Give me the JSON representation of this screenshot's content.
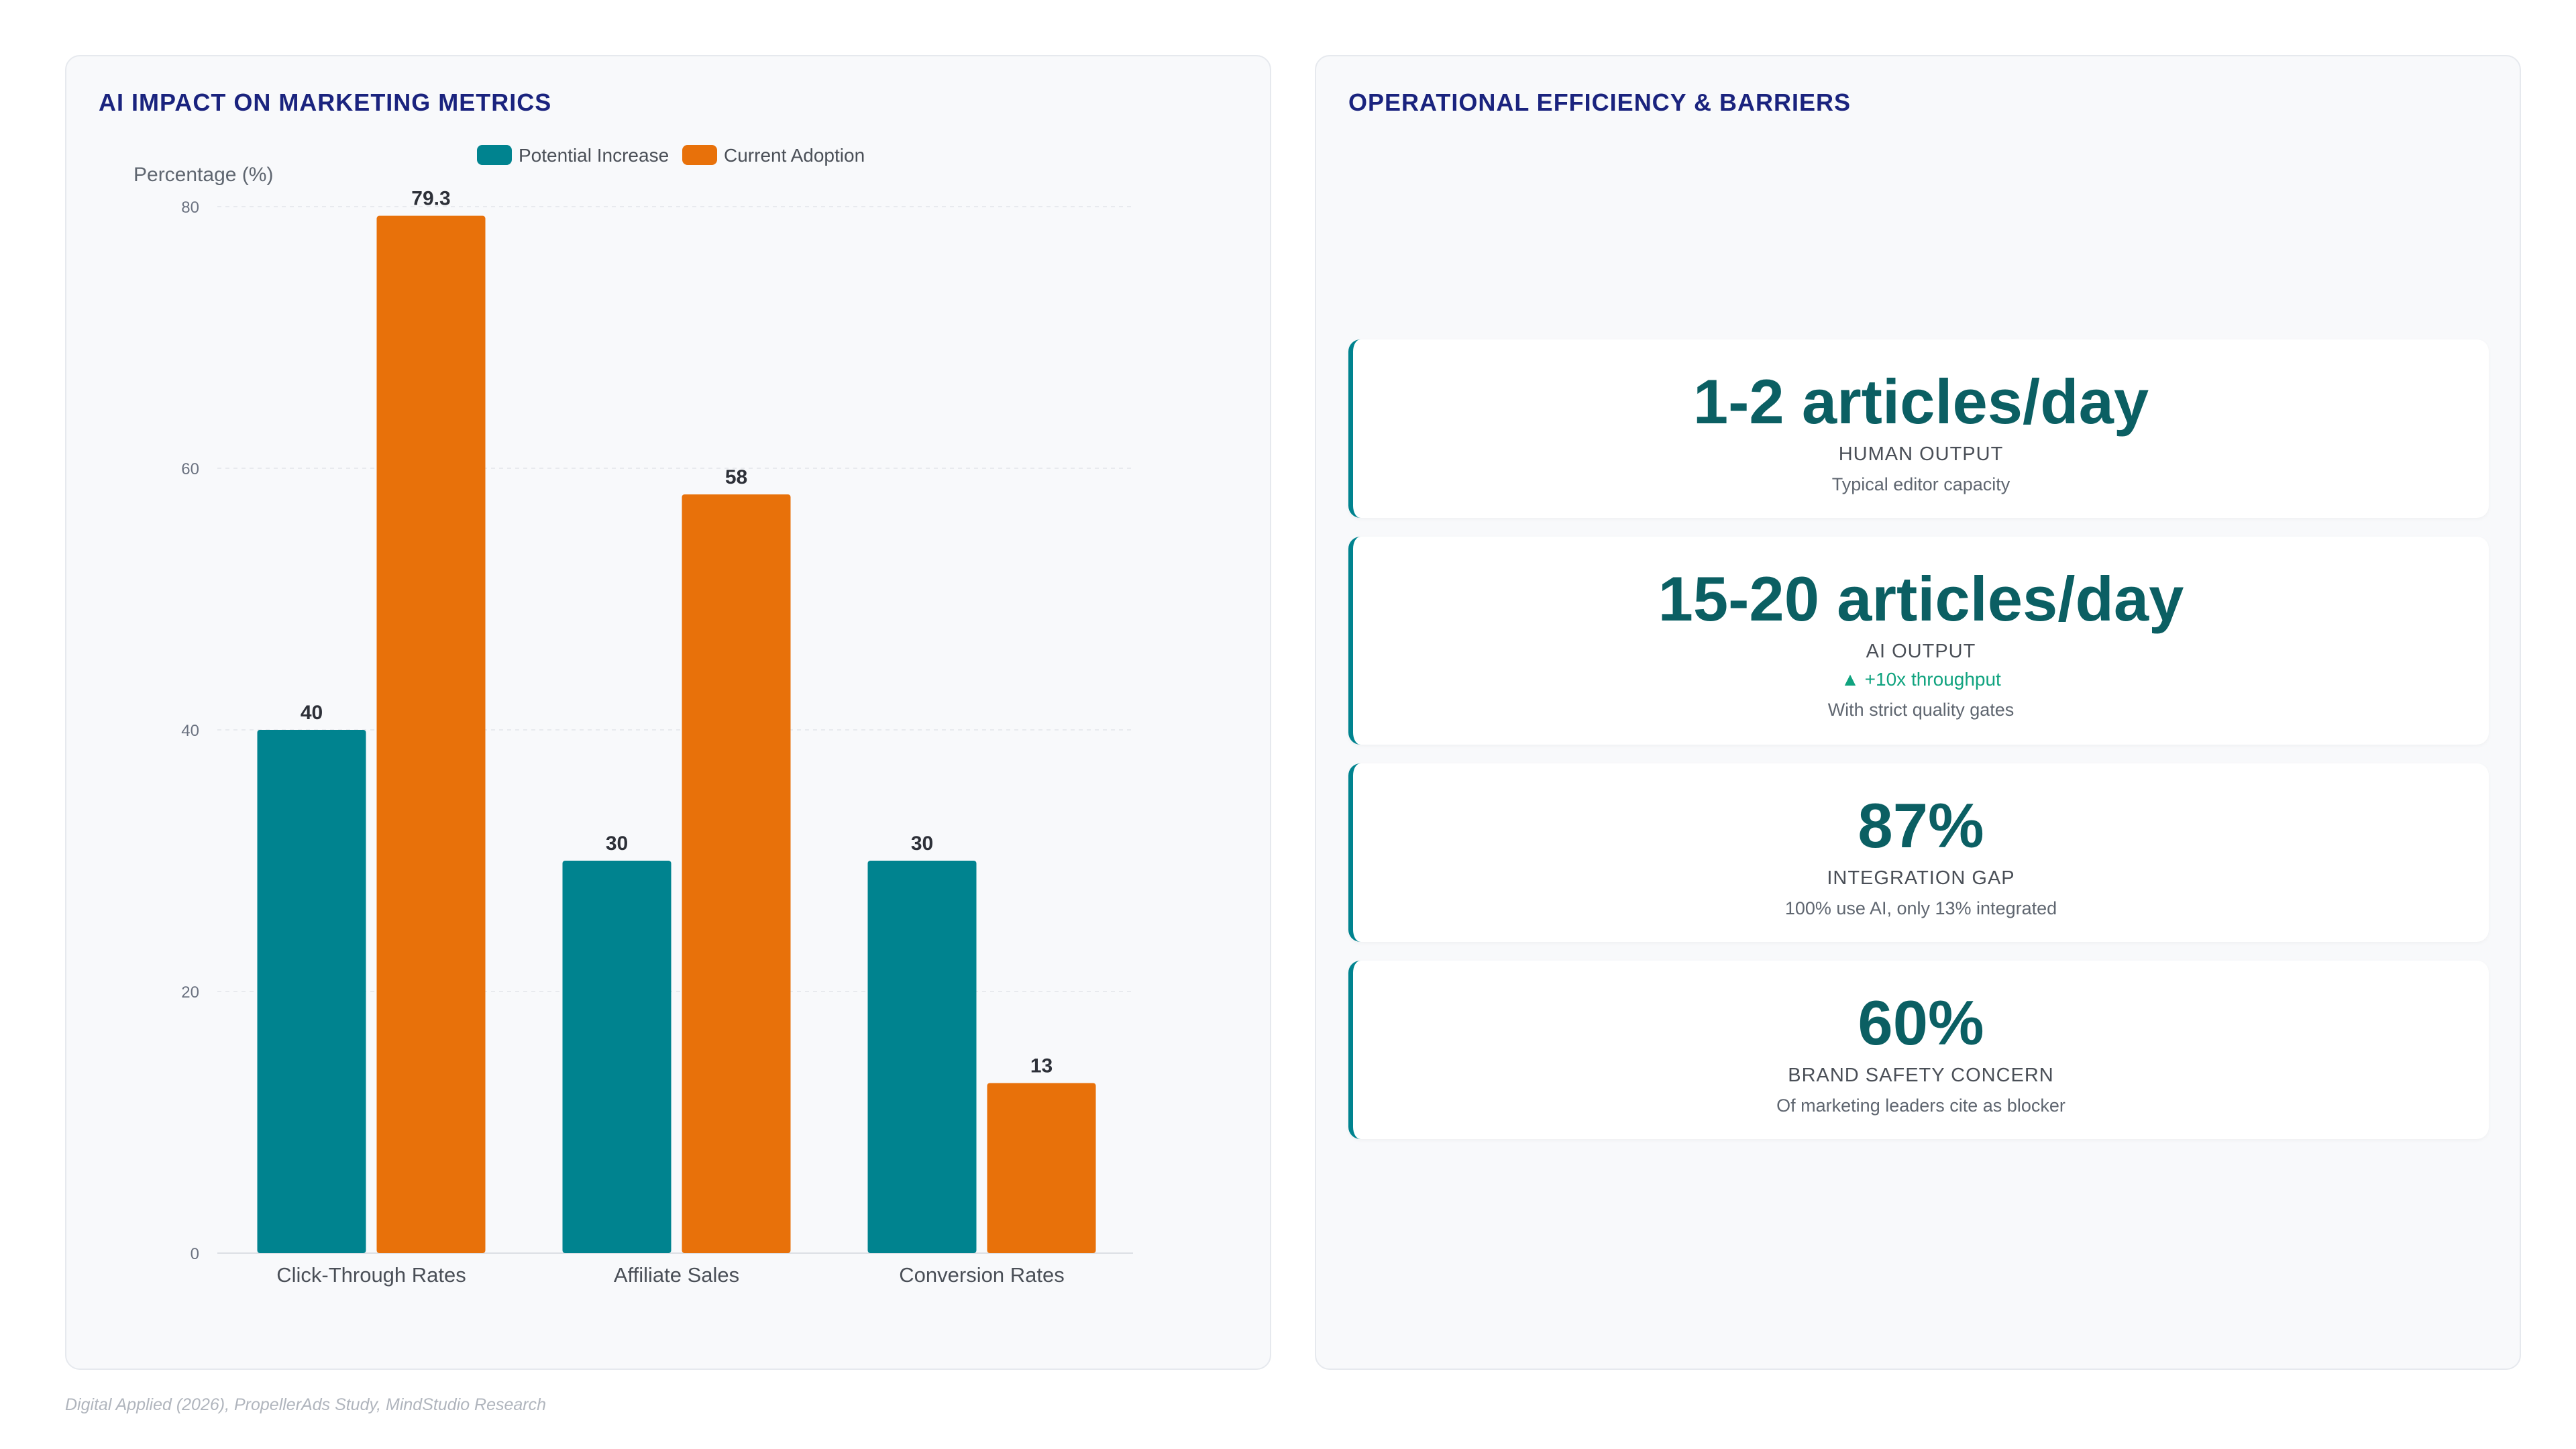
{
  "left_panel": {
    "title": "AI IMPACT ON MARKETING METRICS"
  },
  "chart_data": {
    "type": "bar",
    "categories": [
      "Click-Through Rates",
      "Affiliate Sales",
      "Conversion Rates"
    ],
    "series": [
      {
        "name": "Potential Increase",
        "values": [
          40,
          30,
          30
        ],
        "color": "#00838f"
      },
      {
        "name": "Current Adoption",
        "values": [
          79.3,
          58,
          13
        ],
        "color": "#e8710a"
      }
    ],
    "xlabel": "",
    "ylabel": "Percentage (%)",
    "ylim": [
      0,
      80
    ],
    "yticks": [
      0,
      20,
      40,
      60,
      80
    ],
    "grid": true,
    "legend_position": "top-center",
    "data_labels": true
  },
  "right_panel": {
    "title": "OPERATIONAL EFFICIENCY & BARRIERS",
    "stats": [
      {
        "value": "1-2 articles/day",
        "label": "HUMAN OUTPUT",
        "delta": "",
        "note": "Typical editor capacity"
      },
      {
        "value": "15-20 articles/day",
        "label": "AI OUTPUT",
        "delta": "▲ +10x throughput",
        "note": "With strict quality gates"
      },
      {
        "value": "87%",
        "label": "INTEGRATION GAP",
        "delta": "",
        "note": "100% use AI, only 13% integrated"
      },
      {
        "value": "60%",
        "label": "BRAND SAFETY CONCERN",
        "delta": "",
        "note": "Of marketing leaders cite as blocker"
      }
    ]
  },
  "footer": {
    "source": "Digital Applied (2026), PropellerAds Study, MindStudio Research"
  },
  "colors": {
    "title": "#1a237e",
    "teal": "#00838f",
    "orange": "#e8710a",
    "stat_value": "#0b5f63",
    "delta": "#10a37f"
  }
}
